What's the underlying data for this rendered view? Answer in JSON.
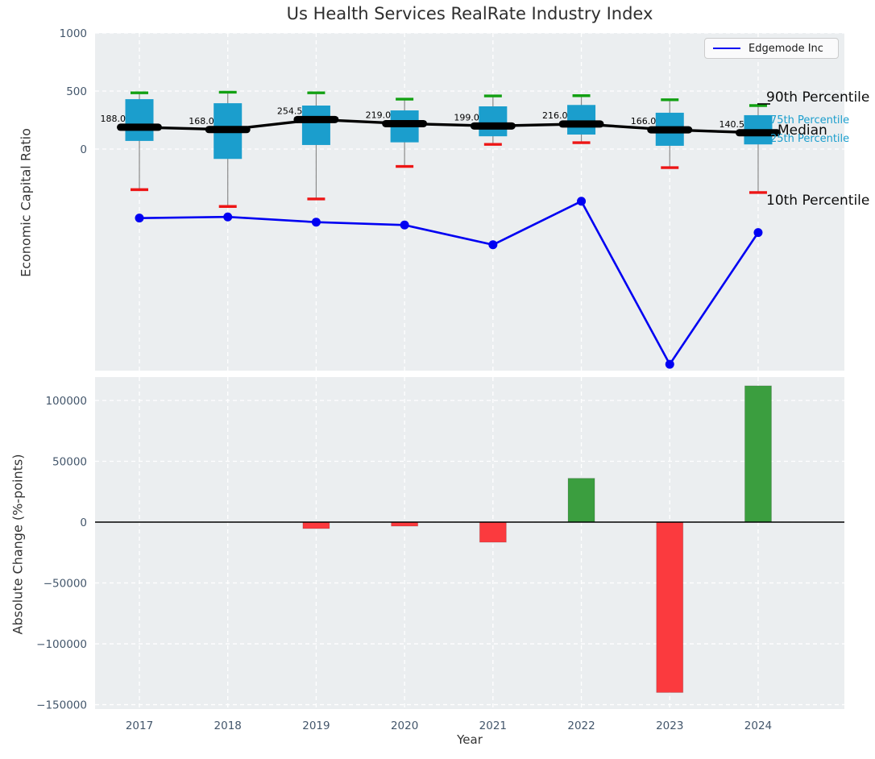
{
  "chart_data": [
    {
      "type": "boxplot+line",
      "title": "Us Health Services RealRate Industry Index",
      "ylabel": "Economic Capital Ratio",
      "categories": [
        "2017",
        "2018",
        "2019",
        "2020",
        "2021",
        "2022",
        "2023",
        "2024"
      ],
      "ylim": [
        -1910,
        1000
      ],
      "yticks": [
        {
          "v": 0,
          "label": "0"
        },
        {
          "v": 500,
          "label": "500"
        },
        {
          "v": 1000,
          "label": "1000"
        }
      ],
      "grid": true,
      "legend_position": "upper right",
      "boxes": [
        {
          "year": "2017",
          "p10": -350,
          "q1": 70,
          "median": 188.0,
          "q3": 430,
          "p90": 485
        },
        {
          "year": "2018",
          "p10": -495,
          "q1": -85,
          "median": 168.0,
          "q3": 395,
          "p90": 490
        },
        {
          "year": "2019",
          "p10": -430,
          "q1": 35,
          "median": 254.5,
          "q3": 375,
          "p90": 485
        },
        {
          "year": "2020",
          "p10": -150,
          "q1": 58,
          "median": 219.0,
          "q3": 333,
          "p90": 430
        },
        {
          "year": "2021",
          "p10": 40,
          "q1": 110,
          "median": 199.0,
          "q3": 368,
          "p90": 458
        },
        {
          "year": "2022",
          "p10": 55,
          "q1": 125,
          "median": 216.0,
          "q3": 380,
          "p90": 460
        },
        {
          "year": "2023",
          "p10": -160,
          "q1": 28,
          "median": 166.0,
          "q3": 313,
          "p90": 425
        },
        {
          "year": "2024",
          "p10": -375,
          "q1": 40,
          "median": 140.5,
          "q3": 292,
          "p90": 375
        }
      ],
      "median_labels": [
        "188.0",
        "168.0",
        "254.5",
        "219.0",
        "199.0",
        "216.0",
        "166.0",
        "140.5"
      ],
      "series": [
        {
          "name": "Edgemode Inc",
          "values": [
            -595,
            -585,
            -630,
            -655,
            -825,
            -450,
            -1855,
            -720
          ],
          "color": "#0000f2"
        }
      ],
      "percentile_annotations": {
        "p90": "90th Percentile",
        "p75": "75th Percentile",
        "median": "Median",
        "p25": "25th Percentile",
        "p10": "10th Percentile"
      },
      "colors": {
        "box_fill": "#1b9ecd",
        "median_line": "#000000",
        "p90_cap": "#12a012",
        "p10_cap": "#ed1515",
        "whisker": "#8a8a8a",
        "background": "#ebeef0",
        "gridline": "#ffffff",
        "tick_label": "#43566b"
      }
    },
    {
      "type": "bar",
      "ylabel": "Absolute Change (%-points)",
      "xlabel": "Year",
      "categories": [
        "2017",
        "2018",
        "2019",
        "2020",
        "2021",
        "2022",
        "2023",
        "2024"
      ],
      "values": [
        0,
        0,
        -5300,
        -3300,
        -16500,
        36000,
        -140000,
        112000
      ],
      "ylim": [
        -153600,
        119200
      ],
      "yticks": [
        {
          "v": -150000,
          "label": "−150000"
        },
        {
          "v": -100000,
          "label": "−100000"
        },
        {
          "v": -50000,
          "label": "−50000"
        },
        {
          "v": 0,
          "label": "0"
        },
        {
          "v": 50000,
          "label": "50000"
        },
        {
          "v": 100000,
          "label": "100000"
        }
      ],
      "zero_line": true,
      "colors": {
        "positive": "#3b9e3f",
        "negative": "#fb3a3e",
        "zero_line": "#000000",
        "background": "#ebeef0",
        "gridline": "#ffffff",
        "tick_label": "#43566b"
      }
    }
  ]
}
